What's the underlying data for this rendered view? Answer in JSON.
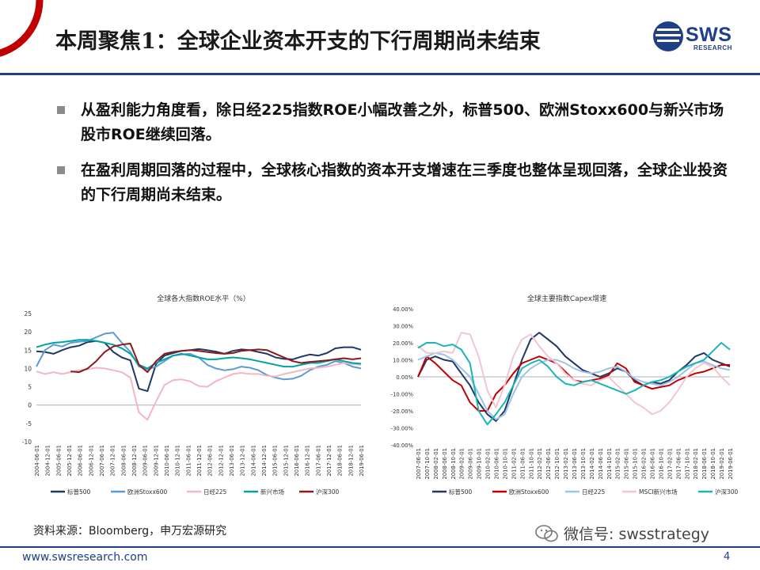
{
  "slide": {
    "title": "本周聚焦1：全球企业资本开支的下行周期尚未结束",
    "logo_text": "SWS",
    "logo_sub": "RESEARCH",
    "bullets": [
      "从盈利能力角度看，除日经225指数ROE小幅改善之外，标普500、欧洲Stoxx600与新兴市场股市ROE继续回落。",
      "在盈利周期回落的过程中，全球核心指数的资本开支增速在三季度也整体呈现回落，全球企业投资的下行周期尚未结束。"
    ],
    "source": "资料来源：Bloomberg，申万宏源研究",
    "wechat": "微信号: swsstrategy",
    "website": "www.swsresearch.com",
    "page_number": "4"
  },
  "colors": {
    "brand": "#1f3f86",
    "accent_red": "#c00000",
    "bullet": "#8c8c8c"
  },
  "chart_data": [
    {
      "type": "line",
      "title": "全球各大指数ROE水平（%）",
      "ylim": [
        -10,
        25
      ],
      "yticks": [
        -10,
        -5,
        0,
        5,
        10,
        15,
        20,
        25
      ],
      "xticks": [
        "2004-06-01",
        "2004-12-01",
        "2005-06-01",
        "2005-12-01",
        "2006-06-01",
        "2006-12-01",
        "2007-06-01",
        "2007-12-01",
        "2008-06-01",
        "2008-12-01",
        "2009-06-01",
        "2009-12-01",
        "2010-06-01",
        "2010-12-01",
        "2011-06-01",
        "2011-12-01",
        "2012-06-01",
        "2012-12-01",
        "2013-06-01",
        "2013-12-01",
        "2014-06-01",
        "2014-12-01",
        "2015-06-01",
        "2015-12-01",
        "2016-06-01",
        "2016-12-01",
        "2017-06-01",
        "2017-12-01",
        "2018-06-01",
        "2018-12-01",
        "2019-06-01"
      ],
      "grid": false,
      "legend_position": "bottom",
      "series": [
        {
          "name": "标普500",
          "color": "#1f3864",
          "values": [
            14.7,
            14.5,
            14.0,
            15.0,
            15.8,
            16.2,
            17.2,
            17.5,
            17.0,
            14.5,
            13.0,
            12.2,
            4.5,
            3.8,
            11.2,
            13.5,
            14.2,
            14.8,
            15.0,
            15.3,
            15.0,
            14.6,
            14.0,
            14.8,
            15.2,
            15.0,
            14.5,
            14.0,
            13.0,
            12.6,
            12.5,
            13.2,
            13.8,
            13.5,
            14.2,
            15.5,
            15.8,
            15.8,
            15.1
          ]
        },
        {
          "name": "欧洲Stoxx600",
          "color": "#5b9bd5",
          "values": [
            10.5,
            15.0,
            16.5,
            16.0,
            17.0,
            17.3,
            17.5,
            18.5,
            19.5,
            19.8,
            17.0,
            14.5,
            10.5,
            9.7,
            10.5,
            12.0,
            13.5,
            13.8,
            14.0,
            13.0,
            11.0,
            10.0,
            9.5,
            9.8,
            10.5,
            10.2,
            9.5,
            8.2,
            7.5,
            7.0,
            7.2,
            8.0,
            9.5,
            10.5,
            11.0,
            12.0,
            11.5,
            10.5,
            10.0
          ]
        },
        {
          "name": "日经225",
          "color": "#f4b6c2",
          "values": [
            9.2,
            8.5,
            9.0,
            8.5,
            9.0,
            9.5,
            9.8,
            10.2,
            10.0,
            9.5,
            9.0,
            7.5,
            -2.0,
            -4.0,
            1.0,
            5.5,
            6.8,
            7.0,
            6.5,
            5.2,
            5.0,
            6.5,
            7.5,
            8.5,
            8.8,
            8.5,
            8.5,
            8.0,
            7.8,
            8.5,
            9.0,
            9.5,
            10.0,
            10.2,
            10.5,
            11.0,
            11.5,
            11.2,
            11.0
          ]
        },
        {
          "name": "新兴市场",
          "color": "#00a3a3",
          "values": [
            15.8,
            16.5,
            17.0,
            17.2,
            17.5,
            17.8,
            17.8,
            17.5,
            17.0,
            16.5,
            15.5,
            14.0,
            11.0,
            10.0,
            11.5,
            12.5,
            13.5,
            14.0,
            13.5,
            13.0,
            12.5,
            12.5,
            12.8,
            13.0,
            12.8,
            12.5,
            12.0,
            11.5,
            11.0,
            10.5,
            10.5,
            11.0,
            11.5,
            11.5,
            12.0,
            12.5,
            12.0,
            11.5,
            11.3
          ]
        },
        {
          "name": "沪深300",
          "color": "#8b1a1a",
          "values": [
            null,
            null,
            null,
            null,
            9.2,
            9.0,
            10.0,
            12.0,
            14.5,
            16.0,
            16.5,
            16.8,
            11.0,
            9.0,
            12.0,
            14.0,
            14.5,
            14.8,
            15.0,
            14.8,
            14.5,
            14.2,
            14.0,
            14.2,
            14.8,
            15.0,
            15.2,
            15.0,
            14.0,
            13.0,
            12.0,
            11.5,
            11.8,
            12.0,
            12.2,
            12.5,
            12.8,
            12.5,
            12.8
          ]
        }
      ]
    },
    {
      "type": "line",
      "title": "全球主要指数Capex增速",
      "ylim": [
        -40,
        40
      ],
      "yticks": [
        "40.00%",
        "30.00%",
        "20.00%",
        "10.00%",
        "0.00%",
        "-10.00%",
        "-20.00%",
        "-30.00%",
        "-40.00%"
      ],
      "xticks": [
        "2007-06-01",
        "2007-10-01",
        "2008-02-01",
        "2008-06-01",
        "2008-10-01",
        "2009-02-01",
        "2009-06-01",
        "2009-10-01",
        "2010-02-01",
        "2010-06-01",
        "2010-10-01",
        "2011-02-01",
        "2011-06-01",
        "2011-10-01",
        "2012-02-01",
        "2012-06-01",
        "2012-10-01",
        "2013-02-01",
        "2013-06-01",
        "2013-10-01",
        "2014-02-01",
        "2014-06-01",
        "2014-10-01",
        "2015-02-01",
        "2015-06-01",
        "2015-10-01",
        "2016-02-01",
        "2016-06-01",
        "2016-10-01",
        "2017-02-01",
        "2017-06-01",
        "2017-10-01",
        "2018-02-01",
        "2018-06-01",
        "2018-10-01",
        "2019-02-01",
        "2019-06-01"
      ],
      "grid": false,
      "legend_position": "bottom",
      "series": [
        {
          "name": "标普500",
          "color": "#1f3864",
          "values": [
            0,
            10,
            12,
            10,
            9,
            2,
            -5,
            -15,
            -22,
            -26,
            -20,
            -5,
            10,
            22,
            26,
            22,
            18,
            12,
            8,
            4,
            2,
            0,
            2,
            5,
            3,
            -2,
            -5,
            -3,
            -4,
            -2,
            3,
            7,
            12,
            14,
            10,
            8,
            6
          ]
        },
        {
          "name": "欧洲Stoxx600",
          "color": "#c00000",
          "values": [
            0,
            12,
            8,
            3,
            -2,
            -5,
            -15,
            -20,
            -20,
            -10,
            -5,
            2,
            8,
            10,
            12,
            10,
            8,
            3,
            -2,
            -3,
            -2,
            -1,
            1,
            8,
            5,
            -3,
            -5,
            -7,
            -6,
            -5,
            -2,
            0,
            2,
            3,
            5,
            7,
            7
          ]
        },
        {
          "name": "日经225",
          "color": "#9dc3e6",
          "values": [
            10,
            12,
            14,
            13,
            10,
            5,
            0,
            -10,
            -20,
            -25,
            -22,
            -10,
            0,
            5,
            8,
            10,
            10,
            8,
            5,
            3,
            2,
            3,
            5,
            6,
            3,
            -1,
            -3,
            -4,
            -5,
            -3,
            0,
            4,
            8,
            9,
            7,
            5,
            4
          ]
        },
        {
          "name": "MSCI新兴市场",
          "color": "#f2c6d0",
          "values": [
            18,
            14,
            14,
            15,
            14,
            26,
            25,
            12,
            -8,
            -18,
            -5,
            12,
            22,
            25,
            18,
            12,
            8,
            2,
            -2,
            -4,
            -5,
            -2,
            0,
            -5,
            -10,
            -15,
            -18,
            -22,
            -20,
            -15,
            -8,
            0,
            5,
            8,
            6,
            0,
            -5
          ]
        },
        {
          "name": "沪深300",
          "color": "#1cb5b5",
          "values": [
            17,
            20,
            20,
            18,
            19,
            16,
            8,
            -20,
            -28,
            -22,
            -15,
            -5,
            5,
            8,
            10,
            6,
            0,
            -4,
            -5,
            -3,
            -2,
            -4,
            -6,
            -8,
            -10,
            -8,
            -5,
            -3,
            -2,
            0,
            3,
            6,
            8,
            10,
            15,
            20,
            16
          ]
        }
      ]
    }
  ]
}
